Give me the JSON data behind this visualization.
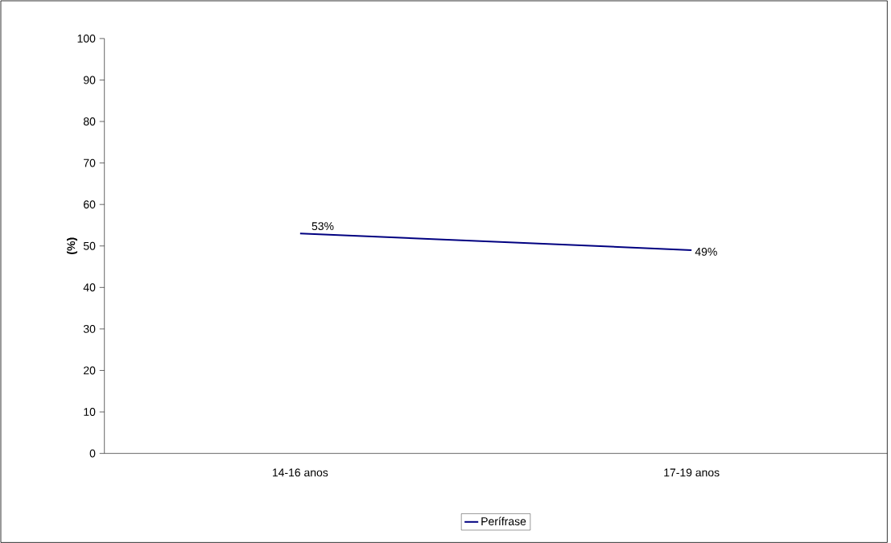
{
  "chart_data": {
    "type": "line",
    "ylabel": "(%)",
    "categories": [
      "14-16 anos",
      "17-19 anos"
    ],
    "series": [
      {
        "name": "Perífrase",
        "color": "#000080",
        "values": [
          53,
          49
        ],
        "value_labels": [
          "53%",
          "49%"
        ]
      }
    ],
    "ylim": [
      0,
      100
    ],
    "yticks": [
      0,
      10,
      20,
      30,
      40,
      50,
      60,
      70,
      80,
      90,
      100
    ],
    "grid": false,
    "legend": "bottom",
    "marker": "none",
    "line_style": "solid"
  }
}
